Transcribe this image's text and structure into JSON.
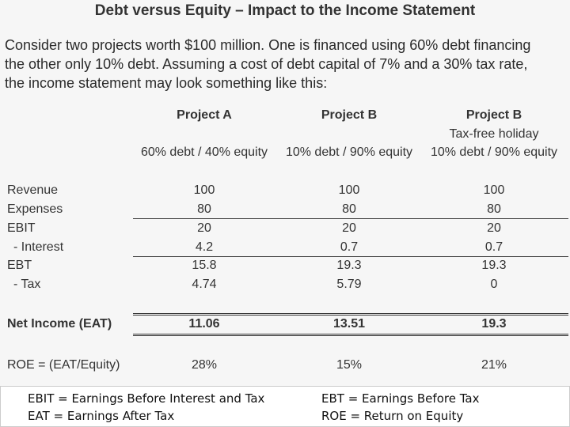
{
  "header": {
    "title": "Debt versus Equity – Impact to the Income Statement"
  },
  "intro": [
    "Consider two projects worth $100 million.  One is financed using 60% debt financing",
    "the other only 10% debt. Assuming a cost of debt capital of 7% and a 30% tax rate,",
    "the income statement may look something like this:"
  ],
  "table": {
    "columns": [
      {
        "name": "Project A",
        "structure": "60% debt / 40% equity"
      },
      {
        "name": "Project B",
        "structure": "10% debt / 90% equity"
      },
      {
        "name": "Project B",
        "note": "Tax-free holiday",
        "structure": "10% debt / 90% equity"
      }
    ],
    "rows": [
      {
        "label": "Revenue",
        "values": [
          "100",
          "100",
          "100"
        ]
      },
      {
        "label": "Expenses",
        "values": [
          "80",
          "80",
          "80"
        ]
      },
      {
        "label": "EBIT",
        "values": [
          "20",
          "20",
          "20"
        ]
      },
      {
        "label": "- Interest",
        "values": [
          "4.2",
          "0.7",
          "0.7"
        ]
      },
      {
        "label": "EBT",
        "values": [
          "15.8",
          "19.3",
          "19.3"
        ]
      },
      {
        "label": "- Tax",
        "values": [
          "4.74",
          "5.79",
          "0"
        ]
      },
      {
        "label": "Net Income (EAT)",
        "values": [
          "11.06",
          "13.51",
          "19.3"
        ]
      },
      {
        "label": "ROE = (EAT/Equity)",
        "values": [
          "28%",
          "15%",
          "21%"
        ]
      }
    ]
  },
  "footnotes": [
    "EBIT = Earnings Before Interest and Tax",
    "EAT = Earnings After Tax",
    "EBT = Earnings Before Tax",
    "ROE = Return on Equity"
  ]
}
